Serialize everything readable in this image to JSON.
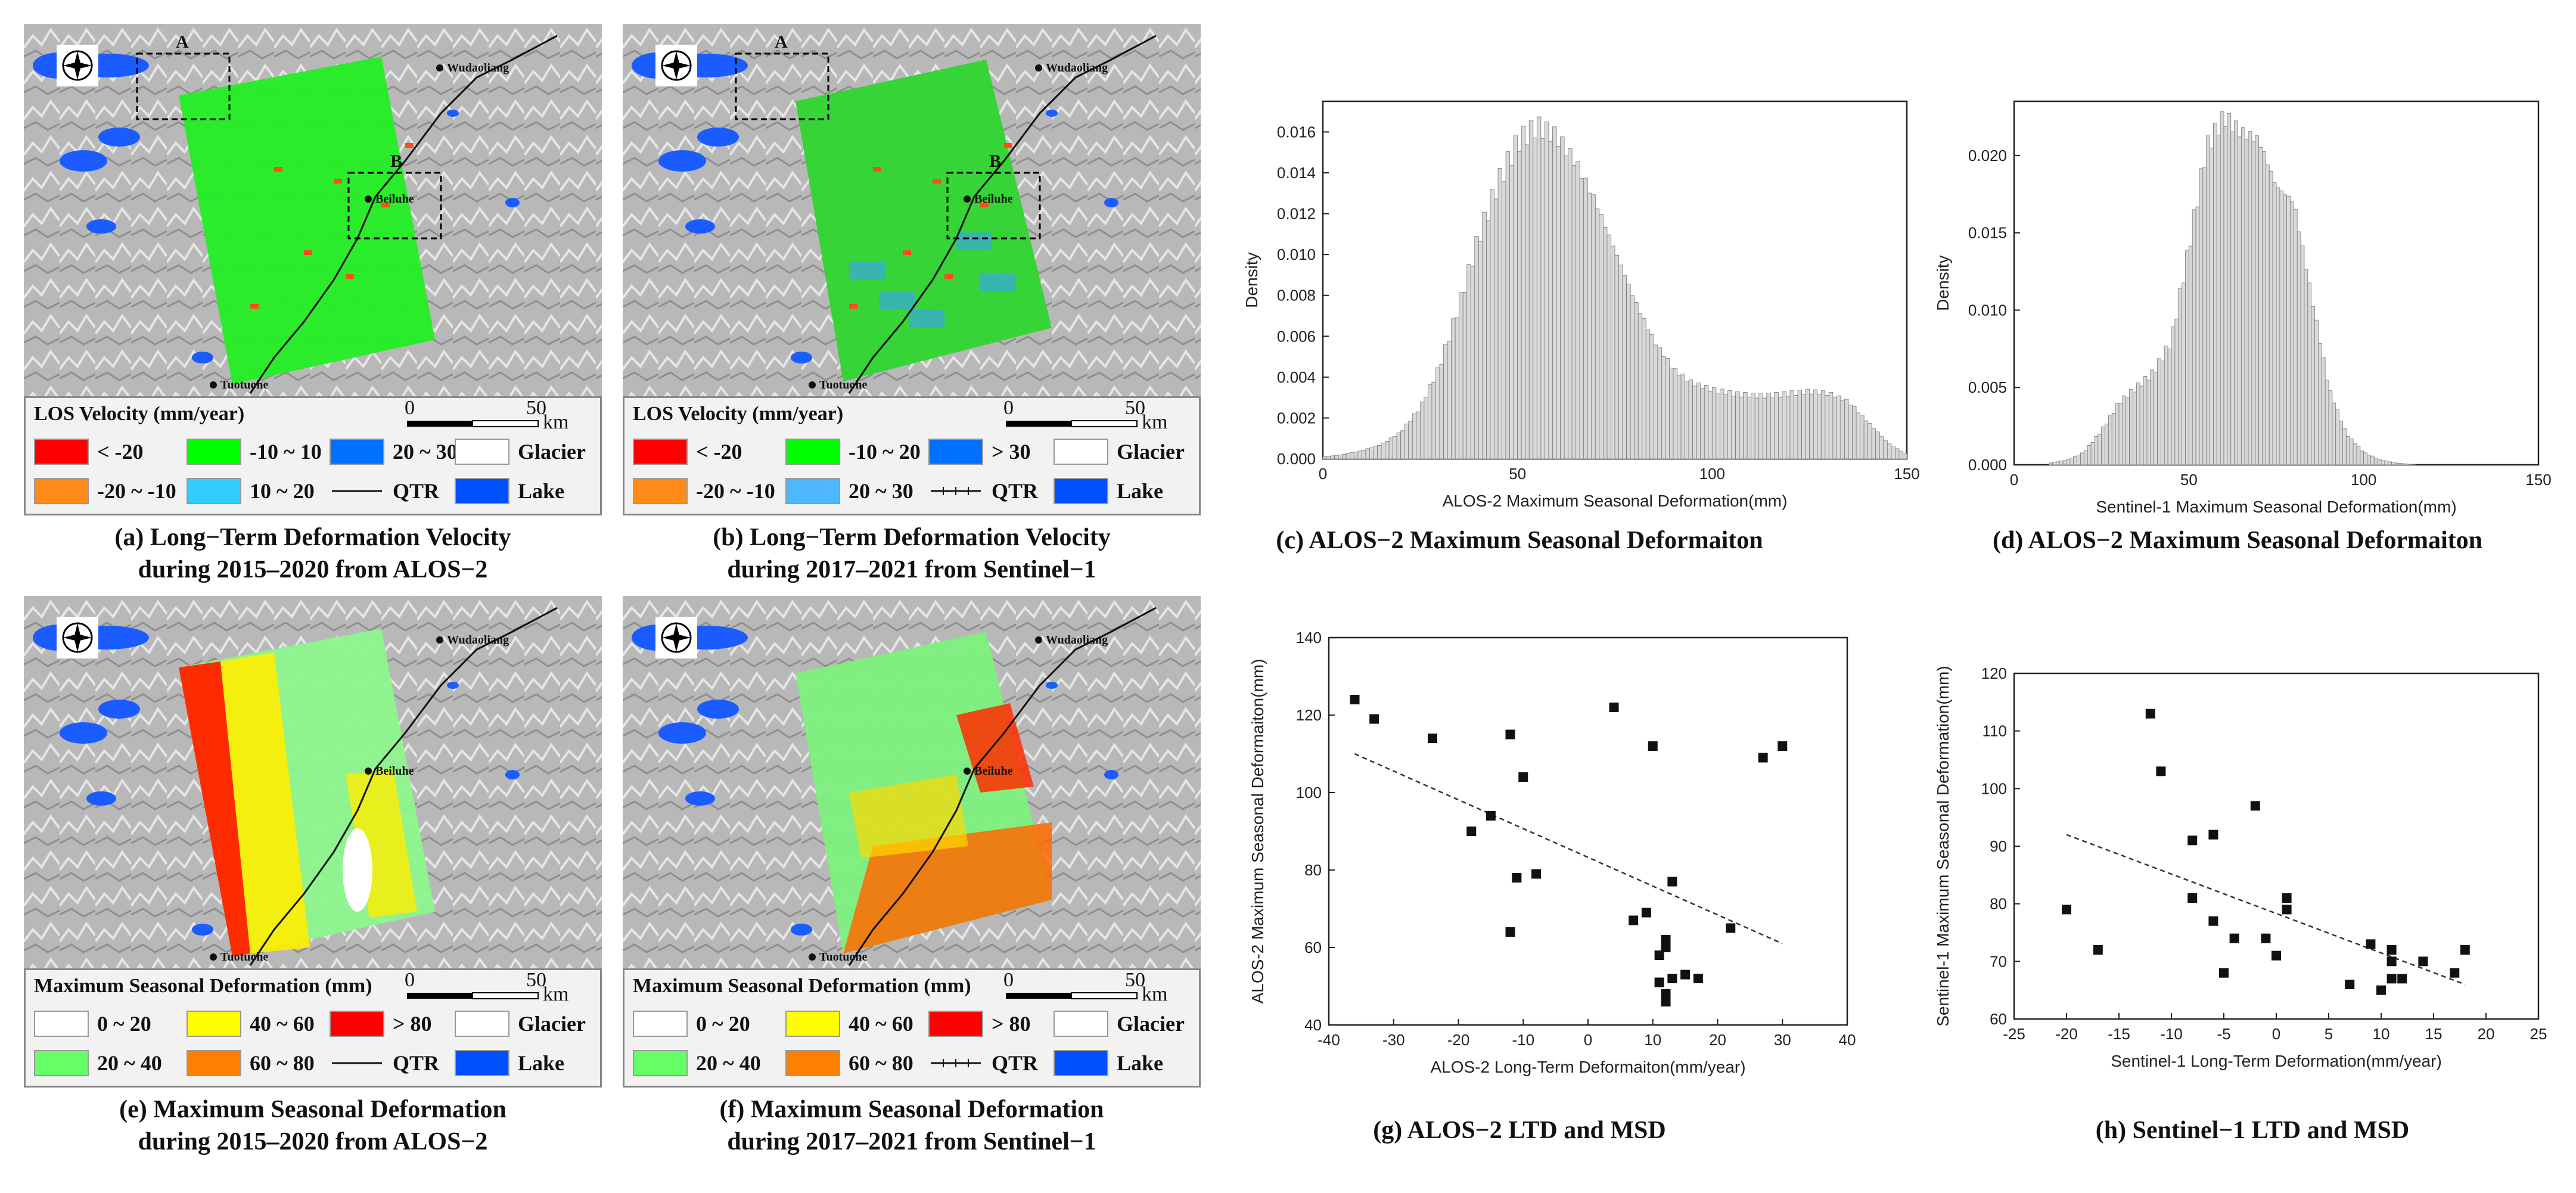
{
  "maps": {
    "a": {
      "caption_line1": "(a) Long−Term Deformation Velocity",
      "caption_line2": "during 2015–2020 from ALOS−2",
      "legend_title": "LOS Velocity (mm/year)",
      "scale_zero": "0",
      "scale_max": "50",
      "scale_unit": "km",
      "box_label_A": "A",
      "box_label_B": "B",
      "places": [
        "Wudaoliang",
        "Beiluhe",
        "Tuotuohe"
      ],
      "legend": [
        {
          "label": "< -20",
          "color": "#ff0000"
        },
        {
          "label": "-10 ~ 10",
          "color": "#00ff00"
        },
        {
          "label": "20 ~ 30",
          "color": "#0070ff"
        },
        {
          "label": "Glacier",
          "color": "#ffffff"
        },
        {
          "label": "-20 ~ -10",
          "color": "#ff8c1a"
        },
        {
          "label": "10 ~ 20",
          "color": "#33ccff"
        },
        {
          "label": "QTR",
          "color": "line"
        },
        {
          "label": "Lake",
          "color": "#0050ff"
        }
      ]
    },
    "b": {
      "caption_line1": "(b) Long−Term Deformation Velocity",
      "caption_line2": "during 2017–2021 from Sentinel−1",
      "legend_title": "LOS Velocity (mm/year)",
      "scale_zero": "0",
      "scale_max": "50",
      "scale_unit": "km",
      "box_label_A": "A",
      "box_label_B": "B",
      "places": [
        "Wudaoliang",
        "Beiluhe",
        "Tuotuohe"
      ],
      "legend": [
        {
          "label": "< -20",
          "color": "#ff0000"
        },
        {
          "label": "-10 ~ 20",
          "color": "#00ff00"
        },
        {
          "label": "> 30",
          "color": "#0070ff"
        },
        {
          "label": "Glacier",
          "color": "#ffffff"
        },
        {
          "label": "-20 ~ -10",
          "color": "#ff8c1a"
        },
        {
          "label": "20 ~ 30",
          "color": "#4db8ff"
        },
        {
          "label": "QTR",
          "color": "rail"
        },
        {
          "label": "Lake",
          "color": "#0050ff"
        }
      ]
    },
    "e": {
      "caption_line1": "(e) Maximum Seasonal Deformation",
      "caption_line2": "during 2015–2020 from ALOS−2",
      "legend_title": "Maximum Seasonal Deformation (mm)",
      "scale_zero": "0",
      "scale_max": "50",
      "scale_unit": "km",
      "places": [
        "Wudaoliang",
        "Beiluhe",
        "Tuotuohe"
      ],
      "legend": [
        {
          "label": "0 ~ 20",
          "color": "#ffffff"
        },
        {
          "label": "40 ~ 60",
          "color": "#ffff00"
        },
        {
          "label": "> 80",
          "color": "#ff0000"
        },
        {
          "label": "Glacier",
          "color": "#ffffff"
        },
        {
          "label": "20 ~ 40",
          "color": "#66ff66"
        },
        {
          "label": "60 ~ 80",
          "color": "#ff8000"
        },
        {
          "label": "QTR",
          "color": "line"
        },
        {
          "label": "Lake",
          "color": "#0050ff"
        }
      ]
    },
    "f": {
      "caption_line1": "(f) Maximum Seasonal Deformation",
      "caption_line2": "during 2017–2021 from Sentinel−1",
      "legend_title": "Maximum Seasonal Deformation (mm)",
      "scale_zero": "0",
      "scale_max": "50",
      "scale_unit": "km",
      "places": [
        "Wudaoliang",
        "Beiluhe",
        "Tuotuohe"
      ],
      "legend": [
        {
          "label": "0 ~ 20",
          "color": "#ffffff"
        },
        {
          "label": "40 ~ 60",
          "color": "#ffff00"
        },
        {
          "label": "> 80",
          "color": "#ff0000"
        },
        {
          "label": "Glacier",
          "color": "#ffffff"
        },
        {
          "label": "20 ~ 40",
          "color": "#66ff66"
        },
        {
          "label": "60 ~ 80",
          "color": "#ff8000"
        },
        {
          "label": "QTR",
          "color": "rail"
        },
        {
          "label": "Lake",
          "color": "#0050ff"
        }
      ]
    }
  },
  "chart_data": [
    {
      "id": "c",
      "type": "bar",
      "title": "(c) ALOS−2 Maximum Seasonal Deformaiton",
      "xlabel": "ALOS-2 Maximum Seasonal Deformation(mm)",
      "ylabel": "Density",
      "xlim": [
        0,
        150
      ],
      "ylim": [
        0,
        0.0175
      ],
      "xticks": [
        0,
        50,
        100,
        150
      ],
      "yticks": [
        "0.000",
        "0.002",
        "0.004",
        "0.006",
        "0.008",
        "0.010",
        "0.012",
        "0.014",
        "0.016"
      ],
      "x": [
        0,
        5,
        10,
        15,
        20,
        25,
        30,
        35,
        40,
        45,
        50,
        55,
        60,
        65,
        70,
        75,
        80,
        85,
        90,
        95,
        100,
        105,
        110,
        115,
        120,
        125,
        130,
        135,
        140,
        145,
        150
      ],
      "values": [
        0.0001,
        0.0002,
        0.0004,
        0.0007,
        0.0013,
        0.0025,
        0.0045,
        0.0075,
        0.0108,
        0.0135,
        0.0155,
        0.0163,
        0.0158,
        0.0145,
        0.0126,
        0.0102,
        0.0078,
        0.0058,
        0.0044,
        0.0037,
        0.0034,
        0.0032,
        0.0031,
        0.0031,
        0.0032,
        0.0033,
        0.0032,
        0.0028,
        0.0018,
        0.0008,
        0.0002
      ]
    },
    {
      "id": "d",
      "type": "bar",
      "title": "(d) ALOS−2 Maximum Seasonal Deformaiton",
      "xlabel": "Sentinel-1 Maximum Seasonal Deformation(mm)",
      "ylabel": "Density",
      "xlim": [
        0,
        150
      ],
      "ylim": [
        0,
        0.0235
      ],
      "xticks": [
        0,
        50,
        100,
        150
      ],
      "yticks": [
        "0.000",
        "0.005",
        "0.010",
        "0.015",
        "0.020"
      ],
      "x": [
        10,
        15,
        20,
        25,
        30,
        35,
        40,
        45,
        50,
        55,
        60,
        65,
        70,
        75,
        80,
        85,
        90,
        95,
        100,
        105,
        110,
        115
      ],
      "values": [
        0.0001,
        0.0003,
        0.0008,
        0.0022,
        0.004,
        0.005,
        0.006,
        0.008,
        0.014,
        0.0205,
        0.0225,
        0.0215,
        0.021,
        0.018,
        0.017,
        0.011,
        0.005,
        0.002,
        0.0008,
        0.0003,
        0.0001,
        0.0
      ]
    },
    {
      "id": "g",
      "type": "scatter",
      "title": "(g) ALOS−2 LTD and MSD",
      "xlabel": "ALOS-2 Long-Term Deformaiton(mm/year)",
      "ylabel": "ALOS-2 Maximum Seasonal Deformaiton(mm)",
      "xlim": [
        -40,
        40
      ],
      "ylim": [
        40,
        140
      ],
      "xticks": [
        -40,
        -30,
        -20,
        -10,
        0,
        10,
        20,
        30,
        40
      ],
      "yticks": [
        40,
        60,
        80,
        100,
        120,
        140
      ],
      "points": [
        [
          -36,
          124
        ],
        [
          -33,
          119
        ],
        [
          -24,
          114
        ],
        [
          -12,
          115
        ],
        [
          -10,
          104
        ],
        [
          -15,
          94
        ],
        [
          -18,
          90
        ],
        [
          -8,
          79
        ],
        [
          -11,
          78
        ],
        [
          -12,
          64
        ],
        [
          4,
          122
        ],
        [
          10,
          112
        ],
        [
          27,
          109
        ],
        [
          30,
          112
        ],
        [
          13,
          77
        ],
        [
          7,
          67
        ],
        [
          9,
          69
        ],
        [
          11,
          58
        ],
        [
          12,
          60
        ],
        [
          12,
          62
        ],
        [
          11,
          51
        ],
        [
          13,
          52
        ],
        [
          12,
          48
        ],
        [
          12,
          46
        ],
        [
          15,
          53
        ],
        [
          17,
          52
        ],
        [
          22,
          65
        ]
      ],
      "trend": [
        [
          -36,
          110
        ],
        [
          30,
          61
        ]
      ]
    },
    {
      "id": "h",
      "type": "scatter",
      "title": "(h) Sentinel−1 LTD and MSD",
      "xlabel": "Sentinel-1 Long-Term Deformation(mm/year)",
      "ylabel": "Sentinel-1 Maximum Seasonal Deformation(mm)",
      "xlim": [
        -25,
        25
      ],
      "ylim": [
        60,
        120
      ],
      "xticks": [
        -25,
        -20,
        -15,
        -10,
        -5,
        0,
        5,
        10,
        15,
        20,
        25
      ],
      "yticks": [
        60,
        70,
        80,
        90,
        100,
        110,
        120
      ],
      "points": [
        [
          -12,
          113
        ],
        [
          -11,
          103
        ],
        [
          -2,
          97
        ],
        [
          -6,
          92
        ],
        [
          -8,
          91
        ],
        [
          -20,
          79
        ],
        [
          -17,
          72
        ],
        [
          -8,
          81
        ],
        [
          -6,
          77
        ],
        [
          -5,
          68
        ],
        [
          -4,
          74
        ],
        [
          -1,
          74
        ],
        [
          0,
          71
        ],
        [
          1,
          81
        ],
        [
          1,
          79
        ],
        [
          7,
          66
        ],
        [
          9,
          73
        ],
        [
          10,
          65
        ],
        [
          11,
          72
        ],
        [
          11,
          70
        ],
        [
          11,
          67
        ],
        [
          12,
          67
        ],
        [
          14,
          70
        ],
        [
          17,
          68
        ],
        [
          18,
          72
        ]
      ],
      "trend": [
        [
          -20,
          92
        ],
        [
          18,
          66
        ]
      ]
    }
  ]
}
